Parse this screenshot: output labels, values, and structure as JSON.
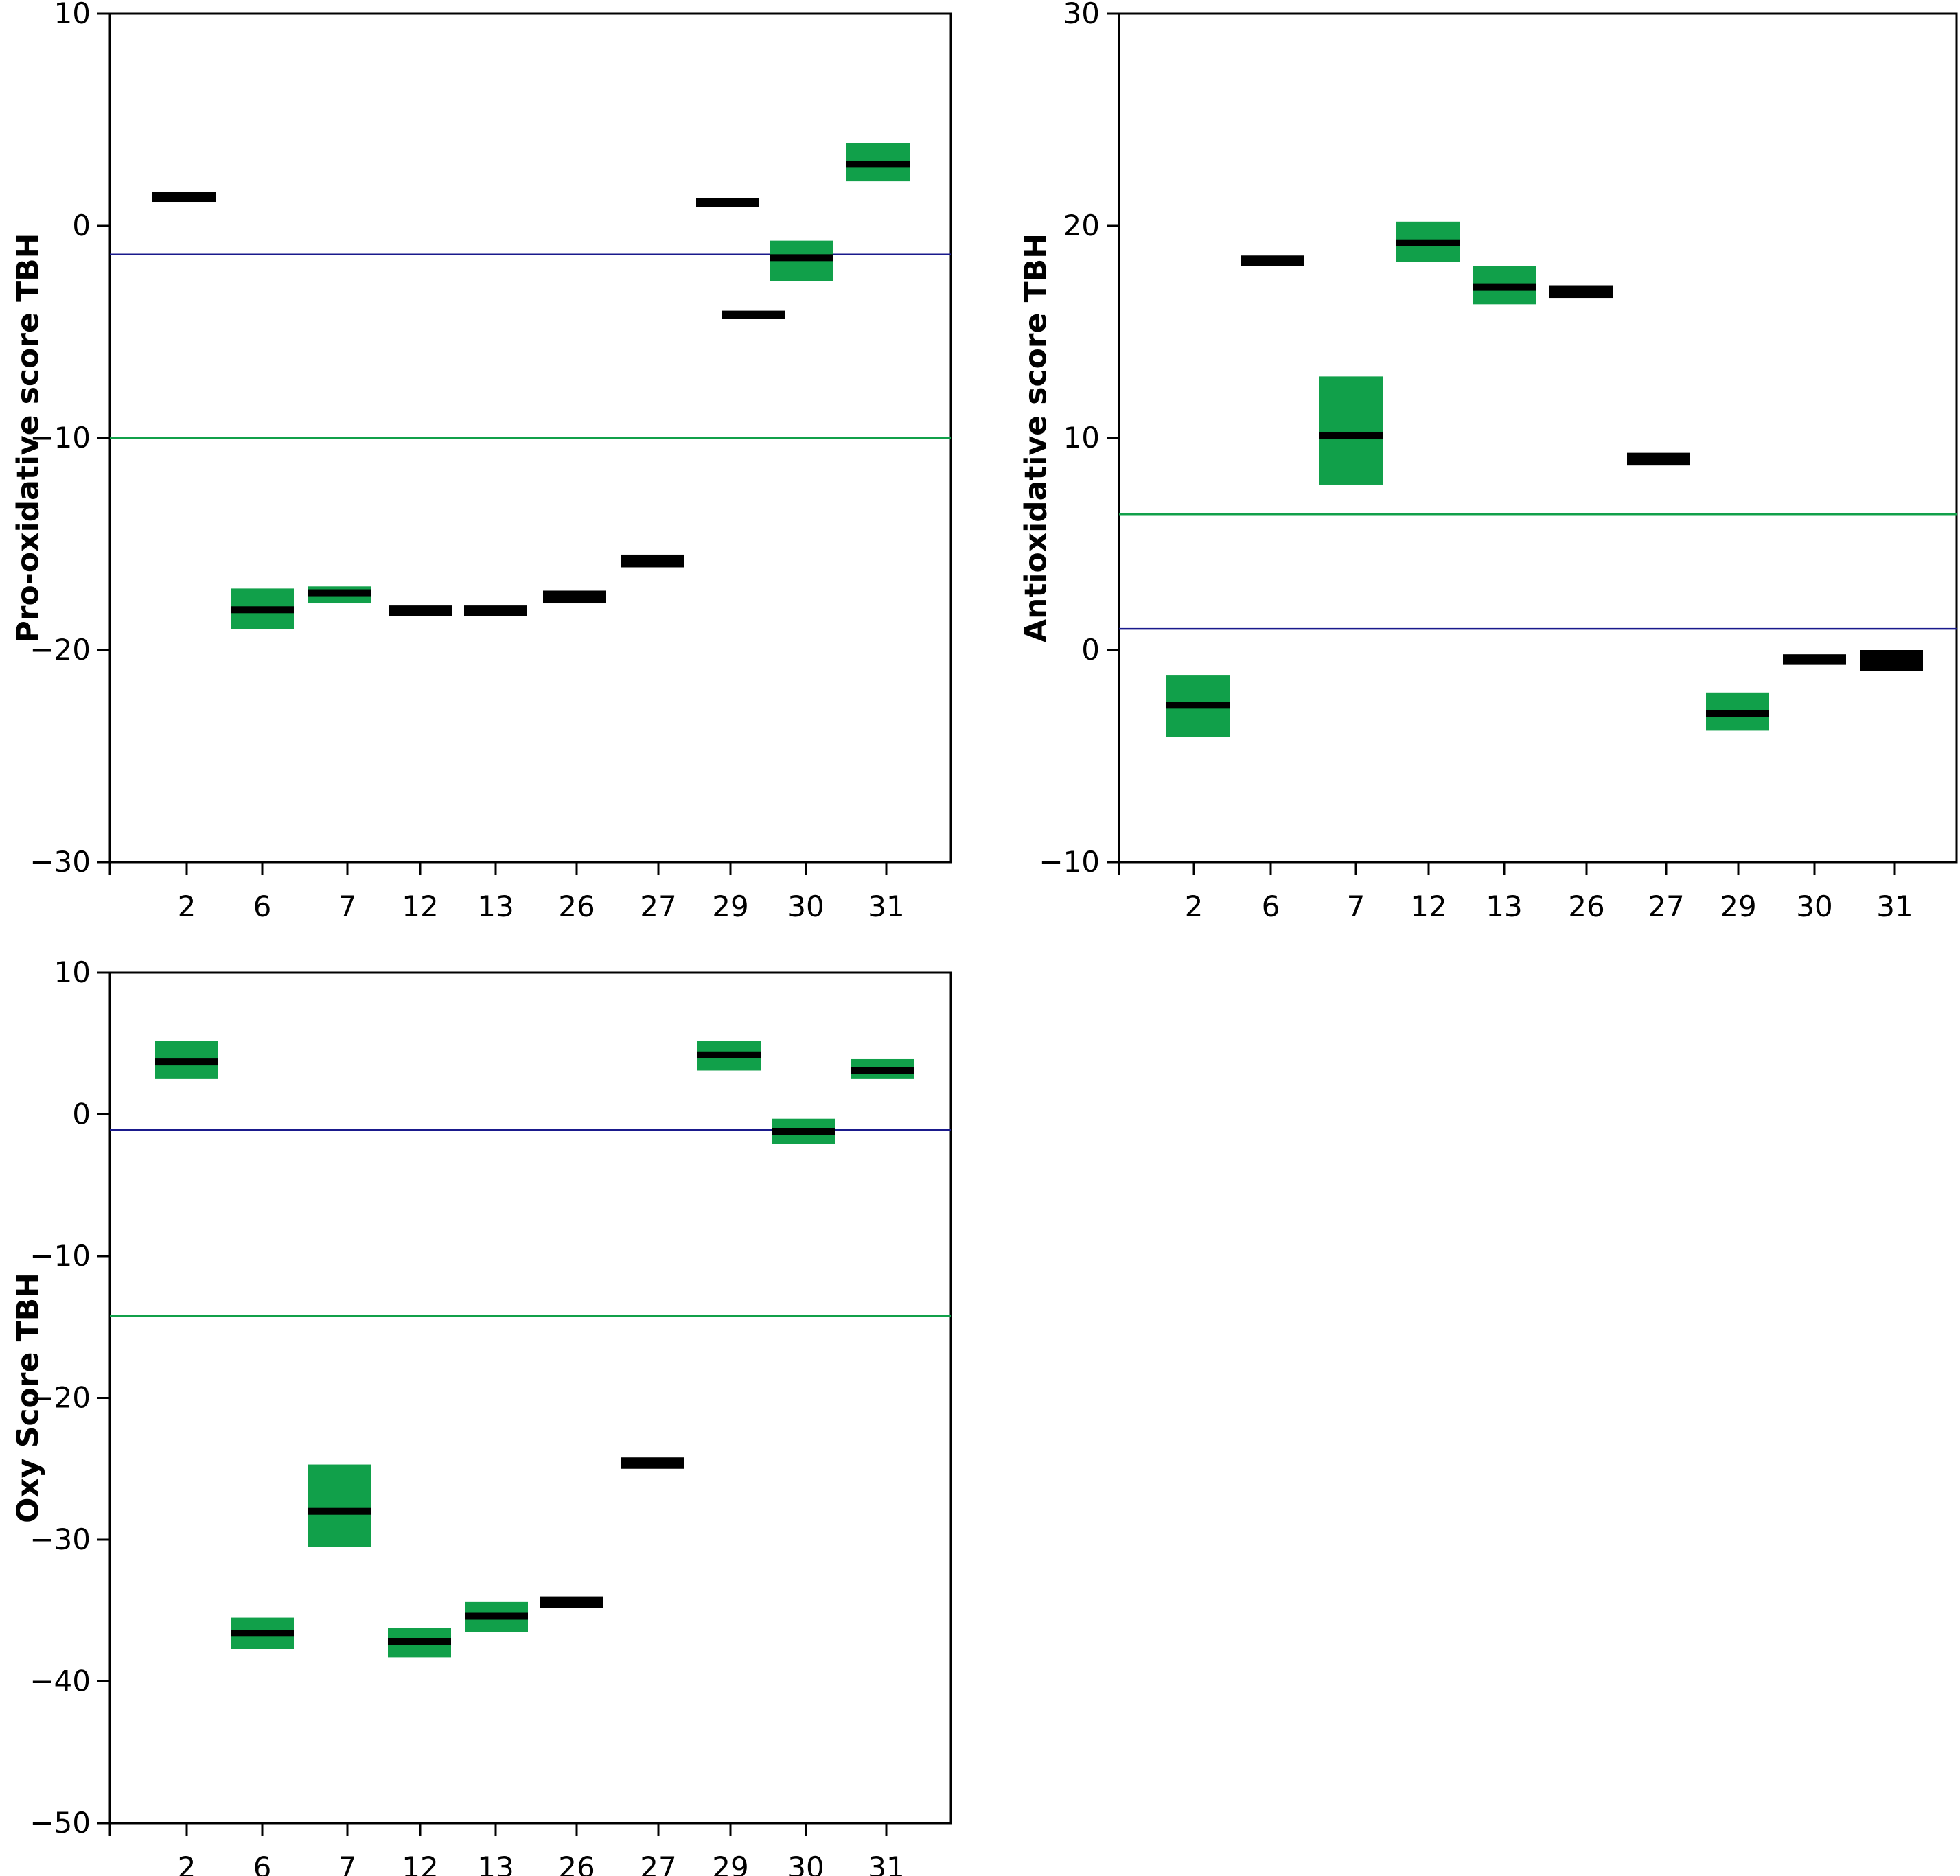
{
  "chart_data": [
    {
      "type": "box",
      "title": "",
      "xlabel": "",
      "ylabel": "Pro-oxidative score TBH",
      "ylim": [
        -30,
        10
      ],
      "yticks": [
        10,
        0,
        -10,
        -20,
        -30
      ],
      "categories": [
        "2",
        "6",
        "7",
        "12",
        "13",
        "26",
        "27",
        "29",
        "30",
        "31"
      ],
      "x_positions": [
        2,
        6,
        7,
        12,
        13,
        26,
        27,
        29,
        29.55,
        30,
        31
      ],
      "boxes": [
        {
          "category": "2",
          "low": 1.1,
          "median": 1.3,
          "high": 1.6,
          "has_range": false
        },
        {
          "category": "6",
          "low": -19.0,
          "median": -18.1,
          "high": -17.1,
          "has_range": true
        },
        {
          "category": "7",
          "low": -17.8,
          "median": -17.3,
          "high": -17.0,
          "has_range": true
        },
        {
          "category": "12",
          "low": -18.4,
          "median": -18.2,
          "high": -17.9,
          "has_range": false
        },
        {
          "category": "13",
          "low": -18.4,
          "median": -18.2,
          "high": -17.9,
          "has_range": false
        },
        {
          "category": "26",
          "low": -17.8,
          "median": -17.5,
          "high": -17.2,
          "has_range": false
        },
        {
          "category": "27",
          "low": -16.1,
          "median": -15.8,
          "high": -15.5,
          "has_range": false
        },
        {
          "category": "29",
          "low": 0.9,
          "median": 1.1,
          "high": 1.3,
          "has_range": false
        },
        {
          "category": "29",
          "low": -4.4,
          "median": -4.2,
          "high": -4.0,
          "has_range": false
        },
        {
          "category": "30",
          "low": -2.6,
          "median": -1.5,
          "high": -0.7,
          "has_range": true
        },
        {
          "category": "31",
          "low": 2.1,
          "median": 2.9,
          "high": 3.9,
          "has_range": true
        }
      ],
      "reference_lines": [
        {
          "y": -1.35,
          "color": "#1a1a8c"
        },
        {
          "y": -10.0,
          "color": "#11a04a"
        }
      ]
    },
    {
      "type": "box",
      "title": "",
      "xlabel": "",
      "ylabel": "Antioxidative score TBH",
      "ylim": [
        -10,
        30
      ],
      "yticks": [
        30,
        20,
        10,
        0,
        -10
      ],
      "categories": [
        "2",
        "6",
        "7",
        "12",
        "13",
        "26",
        "27",
        "29",
        "30",
        "31"
      ],
      "x_positions": [
        2,
        6,
        7,
        12,
        13,
        26,
        27,
        29,
        30,
        31
      ],
      "boxes": [
        {
          "category": "2",
          "low": -4.1,
          "median": -2.6,
          "high": -1.2,
          "has_range": true
        },
        {
          "category": "6",
          "low": 18.1,
          "median": 18.3,
          "high": 18.6,
          "has_range": false
        },
        {
          "category": "7",
          "low": 7.8,
          "median": 10.1,
          "high": 12.9,
          "has_range": true
        },
        {
          "category": "12",
          "low": 18.3,
          "median": 19.2,
          "high": 20.2,
          "has_range": true
        },
        {
          "category": "13",
          "low": 16.3,
          "median": 17.1,
          "high": 18.1,
          "has_range": true
        },
        {
          "category": "26",
          "low": 16.6,
          "median": 16.9,
          "high": 17.2,
          "has_range": false
        },
        {
          "category": "27",
          "low": 8.7,
          "median": 9.0,
          "high": 9.3,
          "has_range": false
        },
        {
          "category": "29",
          "low": -3.8,
          "median": -3.0,
          "high": -2.0,
          "has_range": true
        },
        {
          "category": "30",
          "low": -0.7,
          "median": -0.45,
          "high": -0.2,
          "has_range": false
        },
        {
          "category": "31",
          "low": -1.0,
          "median": -0.5,
          "high": 0.0,
          "has_range": false
        }
      ],
      "reference_lines": [
        {
          "y": 6.4,
          "color": "#11a04a"
        },
        {
          "y": 1.0,
          "color": "#1a1a8c"
        }
      ]
    },
    {
      "type": "box",
      "title": "",
      "xlabel": "",
      "ylabel": "Oxy Score TBH",
      "ylim": [
        -50,
        10
      ],
      "yticks": [
        10,
        0,
        -10,
        -20,
        -30,
        -40,
        -50
      ],
      "categories": [
        "2",
        "6",
        "7",
        "12",
        "13",
        "26",
        "27",
        "29",
        "30",
        "31"
      ],
      "x_positions": [
        2,
        6,
        7,
        12,
        13,
        26,
        27,
        29,
        30,
        31
      ],
      "boxes": [
        {
          "category": "2",
          "low": 2.5,
          "median": 3.7,
          "high": 5.2,
          "has_range": true
        },
        {
          "category": "6",
          "low": -37.7,
          "median": -36.6,
          "high": -35.5,
          "has_range": true
        },
        {
          "category": "7",
          "low": -30.5,
          "median": -28.0,
          "high": -24.7,
          "has_range": true
        },
        {
          "category": "12",
          "low": -38.3,
          "median": -37.2,
          "high": -36.2,
          "has_range": true
        },
        {
          "category": "13",
          "low": -36.5,
          "median": -35.4,
          "high": -34.4,
          "has_range": true
        },
        {
          "category": "26",
          "low": -34.8,
          "median": -34.4,
          "high": -34.0,
          "has_range": false
        },
        {
          "category": "27",
          "low": -25.0,
          "median": -24.6,
          "high": -24.2,
          "has_range": false
        },
        {
          "category": "29",
          "low": 3.1,
          "median": 4.2,
          "high": 5.2,
          "has_range": true
        },
        {
          "category": "30",
          "low": -2.1,
          "median": -1.2,
          "high": -0.3,
          "has_range": true
        },
        {
          "category": "31",
          "low": 2.5,
          "median": 3.1,
          "high": 3.9,
          "has_range": true
        }
      ],
      "reference_lines": [
        {
          "y": -1.1,
          "color": "#1a1a8c"
        },
        {
          "y": -14.2,
          "color": "#11a04a"
        }
      ]
    }
  ],
  "colors": {
    "box_fill": "#11a04a",
    "median": "#000000",
    "blue_line": "#1a1a8c",
    "green_line": "#11a04a"
  }
}
